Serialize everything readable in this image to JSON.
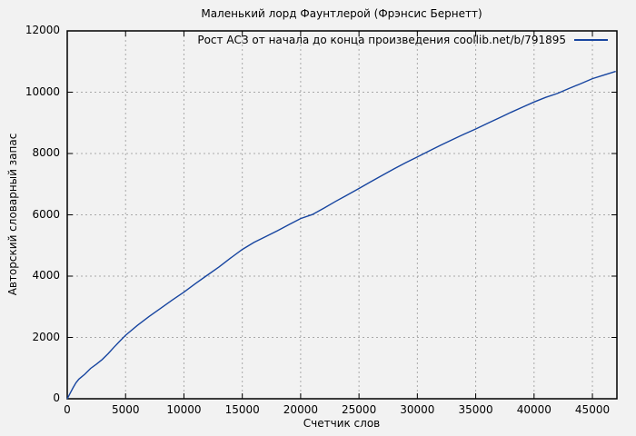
{
  "colors": {
    "background": "#f2f2f2",
    "frame": "#000000",
    "grid": "#a9a9a9",
    "series_blue": "#1745a0",
    "text": "#000000"
  },
  "chart_data": {
    "type": "line",
    "title": "Маленький лорд Фаунтлерой (Фрэнсис Бернетт)",
    "xlabel": "Счетчик слов",
    "ylabel": "Авторский словарный запас",
    "legend_entries": [
      "Рост АСЗ от начала до конца произведения coollib.net/b/791895"
    ],
    "legend_position": "top-right-inside",
    "grid": true,
    "grid_style": "dashed",
    "xlim": [
      0,
      47100
    ],
    "ylim": [
      0,
      12000
    ],
    "x_ticks": [
      0,
      5000,
      10000,
      15000,
      20000,
      25000,
      30000,
      35000,
      40000,
      45000
    ],
    "y_ticks": [
      0,
      2000,
      4000,
      6000,
      8000,
      10000,
      12000
    ],
    "series": [
      {
        "name": "Рост АСЗ от начала до конца произведения coollib.net/b/791895",
        "color": "#1745a0",
        "points": [
          [
            0,
            0
          ],
          [
            250,
            180
          ],
          [
            500,
            360
          ],
          [
            750,
            520
          ],
          [
            1000,
            640
          ],
          [
            1500,
            800
          ],
          [
            2000,
            990
          ],
          [
            2500,
            1130
          ],
          [
            3000,
            1280
          ],
          [
            3500,
            1470
          ],
          [
            4000,
            1680
          ],
          [
            4500,
            1880
          ],
          [
            5000,
            2070
          ],
          [
            6000,
            2390
          ],
          [
            7000,
            2680
          ],
          [
            8000,
            2950
          ],
          [
            9000,
            3220
          ],
          [
            10000,
            3480
          ],
          [
            11000,
            3760
          ],
          [
            12000,
            4030
          ],
          [
            13000,
            4300
          ],
          [
            14000,
            4590
          ],
          [
            15000,
            4870
          ],
          [
            16000,
            5100
          ],
          [
            17000,
            5290
          ],
          [
            18000,
            5480
          ],
          [
            19000,
            5680
          ],
          [
            20000,
            5880
          ],
          [
            21000,
            6010
          ],
          [
            22000,
            6220
          ],
          [
            23000,
            6440
          ],
          [
            24000,
            6650
          ],
          [
            25000,
            6860
          ],
          [
            26000,
            7080
          ],
          [
            27000,
            7290
          ],
          [
            28000,
            7500
          ],
          [
            29000,
            7700
          ],
          [
            30000,
            7890
          ],
          [
            31000,
            8080
          ],
          [
            32000,
            8270
          ],
          [
            33000,
            8450
          ],
          [
            34000,
            8630
          ],
          [
            35000,
            8800
          ],
          [
            36000,
            8980
          ],
          [
            37000,
            9160
          ],
          [
            38000,
            9340
          ],
          [
            39000,
            9510
          ],
          [
            40000,
            9680
          ],
          [
            41000,
            9830
          ],
          [
            42000,
            9960
          ],
          [
            43000,
            10120
          ],
          [
            44000,
            10280
          ],
          [
            45000,
            10440
          ],
          [
            46000,
            10560
          ],
          [
            47000,
            10680
          ]
        ]
      }
    ]
  }
}
